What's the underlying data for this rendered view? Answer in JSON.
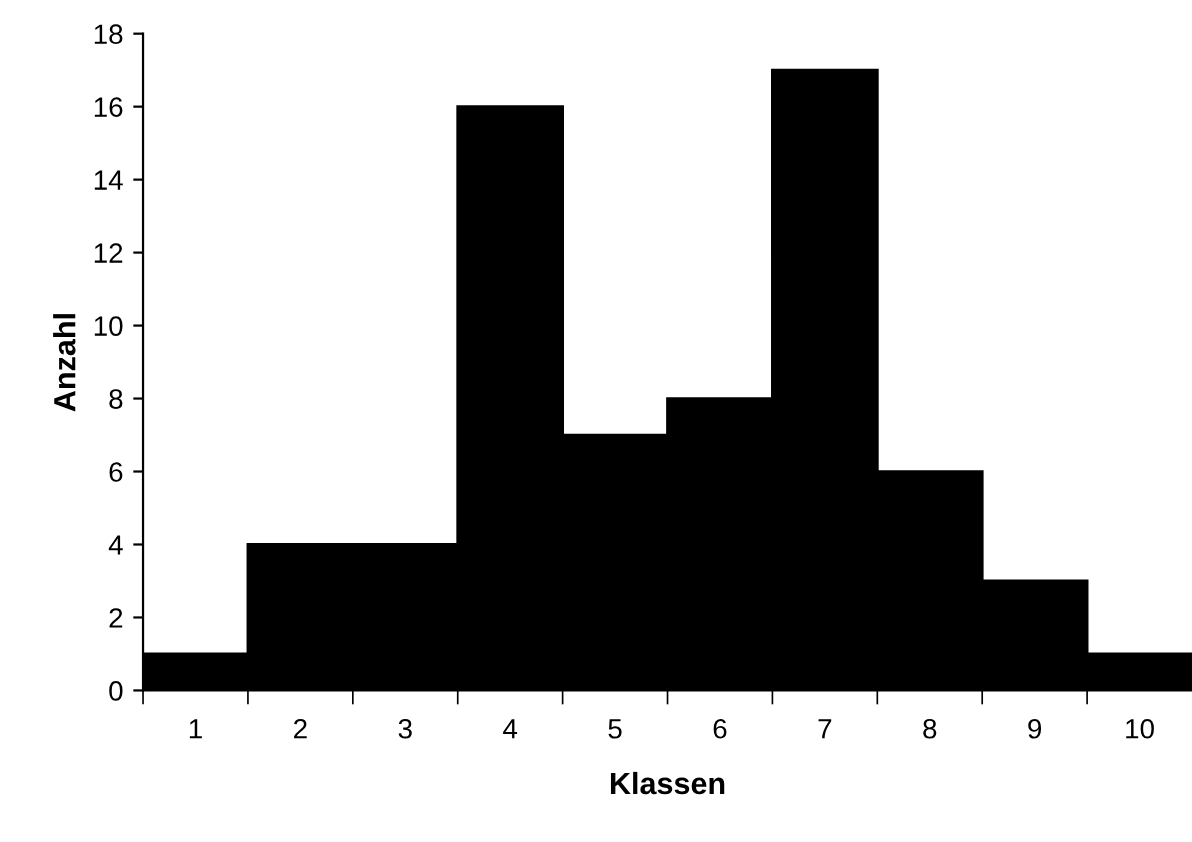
{
  "chart_data": {
    "type": "bar",
    "xlabel": "Klassen",
    "ylabel": "Anzahl",
    "categories": [
      "1",
      "2",
      "3",
      "4",
      "5",
      "6",
      "7",
      "8",
      "9",
      "10"
    ],
    "values": [
      1,
      4,
      4,
      16,
      7,
      8,
      17,
      6,
      3,
      1
    ],
    "color": "#000000",
    "ylim": [
      0,
      18
    ],
    "yticks": [
      0,
      2,
      4,
      6,
      8,
      10,
      12,
      14,
      16,
      18
    ],
    "grid": false,
    "legend": false
  }
}
